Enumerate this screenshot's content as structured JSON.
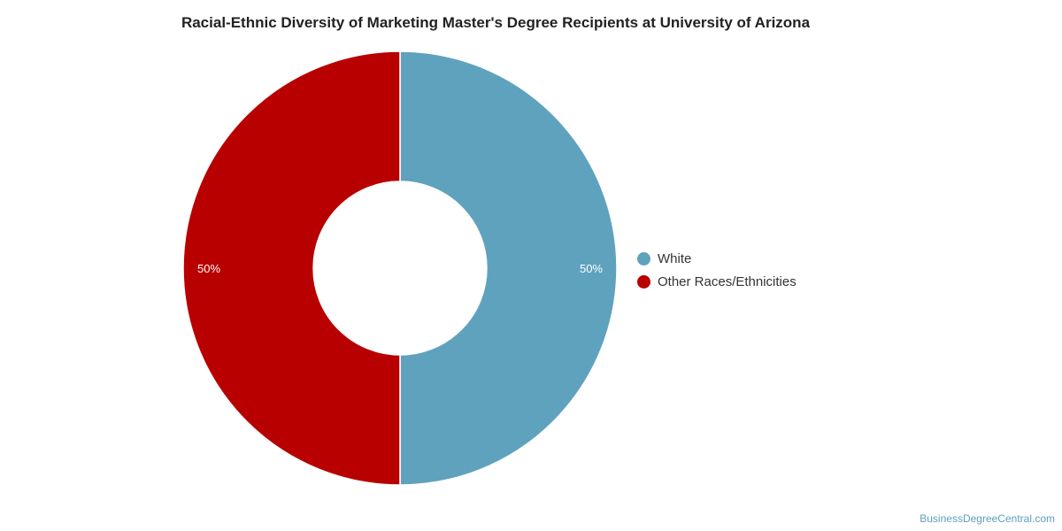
{
  "chart_data": {
    "type": "pie",
    "title": "Racial-Ethnic Diversity of Marketing Master's Degree Recipients at University of Arizona",
    "donut": true,
    "categories": [
      "White",
      "Other Races/Ethnicities"
    ],
    "values": [
      50,
      50
    ],
    "labels": [
      "50%",
      "50%"
    ],
    "colors": [
      "#5fa2be",
      "#b80000"
    ],
    "legend_position": "right"
  },
  "legend": {
    "items": [
      {
        "label": "White",
        "color": "#5fa2be"
      },
      {
        "label": "Other Races/Ethnicities",
        "color": "#b80000"
      }
    ]
  },
  "watermark": "BusinessDegreeCentral.com"
}
